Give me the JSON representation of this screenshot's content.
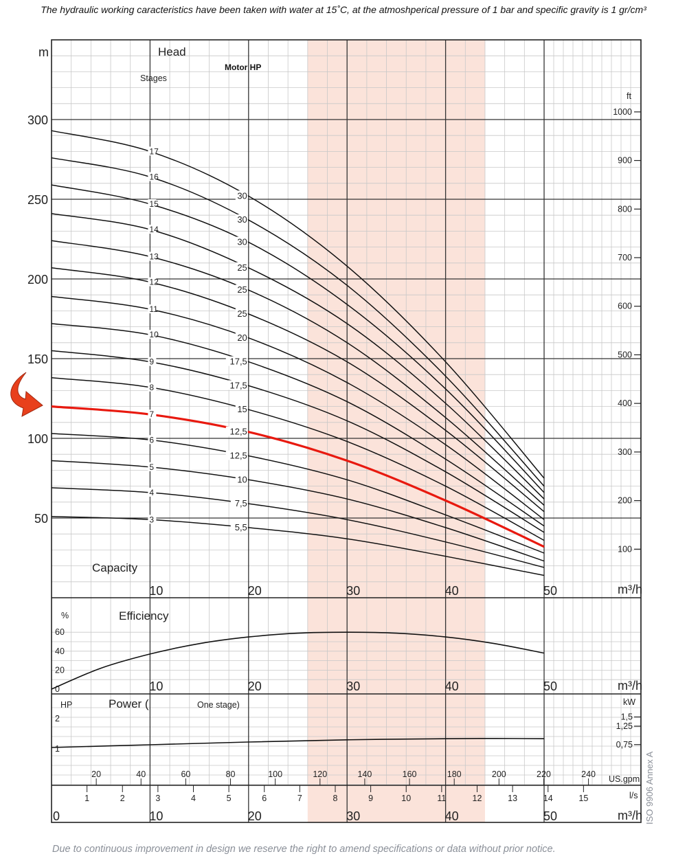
{
  "header_note": "The hydraulic working caracteristics have been taken with water at 15˚C, at the atmoshperical pressure of 1 bar and specific gravity is 1 gr/cm³",
  "footer_note": "Due to continuous improvement in design we reserve the right to amend specifications or data without prior notice.",
  "iso_note": "ISO 9906 Annex A",
  "colors": {
    "highlight": "#e8190f",
    "band": "#fbe3da",
    "grid_minor": "#c8c8c8",
    "grid_major": "#333333",
    "arrow": "#e8401c"
  },
  "icons": {
    "pointer": "curved-arrow-icon"
  },
  "head_panel": {
    "unit_left": "m",
    "title": "Head",
    "stages_label": "Stages",
    "motor_label": "Motor HP",
    "unit_right": "ft",
    "capacity_label": "Capacity",
    "flow_unit": "m³/h",
    "y_ticks": [
      "300",
      "250",
      "200",
      "150",
      "100",
      "50"
    ],
    "ft_ticks": [
      "1000",
      "900",
      "800",
      "700",
      "600",
      "500",
      "400",
      "300",
      "200",
      "100"
    ],
    "x_ticks": [
      "10",
      "20",
      "30",
      "40",
      "50"
    ]
  },
  "efficiency_panel": {
    "unit": "%",
    "title": "Efficiency",
    "y_ticks": [
      "60",
      "40",
      "20",
      "0"
    ],
    "x_ticks": [
      "10",
      "20",
      "30",
      "40",
      "50"
    ],
    "flow_unit": "m³/h"
  },
  "power_panel": {
    "unit_left": "HP",
    "title_a": "Power (",
    "title_b": "One stage)",
    "hp_ticks": [
      "2",
      "1"
    ],
    "unit_right": "kW",
    "kw_ticks": [
      "1,5",
      "1,25",
      "0,75"
    ],
    "gpm_ticks": [
      "20",
      "40",
      "60",
      "80",
      "100",
      "120",
      "140",
      "160",
      "180",
      "200",
      "220",
      "240"
    ],
    "gpm_unit": "US.gpm",
    "ls_ticks": [
      "1",
      "2",
      "3",
      "4",
      "5",
      "6",
      "7",
      "8",
      "9",
      "10",
      "11",
      "12",
      "13",
      "14",
      "15"
    ],
    "ls_unit": "l/s",
    "m3h_ticks": [
      "0",
      "10",
      "20",
      "30",
      "40",
      "50"
    ],
    "m3h_unit": "m³/h"
  },
  "chart_data": [
    {
      "type": "line",
      "title": "Head",
      "xlabel": "Capacity",
      "x_unit": "m³/h",
      "ylabel": "m",
      "y2label": "ft",
      "xlim": [
        0,
        50
      ],
      "ylim": [
        0,
        350
      ],
      "grid": true,
      "shaded_band_x": [
        26,
        44
      ],
      "highlighted_curve_stages": 7,
      "series": [
        {
          "stages": 17,
          "x": [
            0,
            10,
            20,
            30,
            40,
            50
          ],
          "y": [
            293,
            280,
            252,
            208,
            148,
            75
          ]
        },
        {
          "stages": 16,
          "x": [
            0,
            10,
            20,
            30,
            40,
            50
          ],
          "y": [
            276,
            264,
            237,
            196,
            139,
            70
          ]
        },
        {
          "stages": 15,
          "x": [
            0,
            10,
            20,
            30,
            40,
            50
          ],
          "y": [
            259,
            247,
            223,
            184,
            131,
            66
          ]
        },
        {
          "stages": 14,
          "x": [
            0,
            10,
            20,
            30,
            40,
            50
          ],
          "y": [
            241,
            231,
            207,
            172,
            122,
            62
          ]
        },
        {
          "stages": 13,
          "x": [
            0,
            10,
            20,
            30,
            40,
            50
          ],
          "y": [
            224,
            214,
            193,
            160,
            113,
            58
          ]
        },
        {
          "stages": 12,
          "x": [
            0,
            10,
            20,
            30,
            40,
            50
          ],
          "y": [
            207,
            198,
            178,
            148,
            105,
            54
          ]
        },
        {
          "stages": 11,
          "x": [
            0,
            10,
            20,
            30,
            40,
            50
          ],
          "y": [
            189,
            181,
            163,
            135,
            96,
            49
          ]
        },
        {
          "stages": 10,
          "x": [
            0,
            10,
            20,
            30,
            40,
            50
          ],
          "y": [
            172,
            165,
            148,
            123,
            87,
            45
          ]
        },
        {
          "stages": 9,
          "x": [
            0,
            10,
            20,
            30,
            40,
            50
          ],
          "y": [
            155,
            148,
            133,
            111,
            79,
            41
          ]
        },
        {
          "stages": 8,
          "x": [
            0,
            10,
            20,
            30,
            40,
            50
          ],
          "y": [
            138,
            132,
            118,
            98,
            70,
            36
          ]
        },
        {
          "stages": 7,
          "x": [
            0,
            10,
            20,
            30,
            40,
            50
          ],
          "y": [
            120,
            115,
            104,
            86,
            61,
            32
          ]
        },
        {
          "stages": 6,
          "x": [
            0,
            10,
            20,
            30,
            40,
            50
          ],
          "y": [
            103,
            99,
            89,
            74,
            52,
            28
          ]
        },
        {
          "stages": 5,
          "x": [
            0,
            10,
            20,
            30,
            40,
            50
          ],
          "y": [
            86,
            82,
            74,
            62,
            44,
            23
          ]
        },
        {
          "stages": 4,
          "x": [
            0,
            10,
            20,
            30,
            40,
            50
          ],
          "y": [
            69,
            66,
            59,
            49,
            35,
            19
          ]
        },
        {
          "stages": 3,
          "x": [
            0,
            10,
            20,
            30,
            40,
            50
          ],
          "y": [
            51,
            49,
            44,
            37,
            26,
            14
          ]
        }
      ],
      "stage_labels": [
        "17",
        "16",
        "15",
        "14",
        "13",
        "12",
        "11",
        "10",
        "9",
        "8",
        "7",
        "6",
        "5",
        "4",
        "3"
      ],
      "motor_hp_labels": [
        "30",
        "30",
        "30",
        "25",
        "25",
        "25",
        "20",
        "17,5",
        "17,5",
        "15",
        "12,5",
        "12,5",
        "10",
        "7,5",
        "5,5"
      ]
    },
    {
      "type": "line",
      "title": "Efficiency",
      "xlabel": "",
      "x_unit": "m³/h",
      "ylabel": "%",
      "xlim": [
        0,
        50
      ],
      "ylim": [
        0,
        70
      ],
      "grid": true,
      "series": [
        {
          "x": [
            0,
            5,
            10,
            15,
            20,
            25,
            30,
            35,
            40,
            45,
            50
          ],
          "y": [
            0,
            22,
            37,
            48,
            55,
            59,
            60,
            59,
            55,
            48,
            38
          ]
        }
      ]
    },
    {
      "type": "line",
      "title": "Power ( One stage)",
      "xlabel": "",
      "x_unit": "m³/h",
      "ylabel": "HP",
      "y2label": "kW",
      "xlim": [
        0,
        50
      ],
      "ylim": [
        0.5,
        2.2
      ],
      "grid": true,
      "series": [
        {
          "x": [
            0,
            10,
            20,
            30,
            40,
            45,
            50
          ],
          "y": [
            1.0,
            1.1,
            1.2,
            1.28,
            1.32,
            1.33,
            1.32
          ]
        }
      ]
    }
  ]
}
